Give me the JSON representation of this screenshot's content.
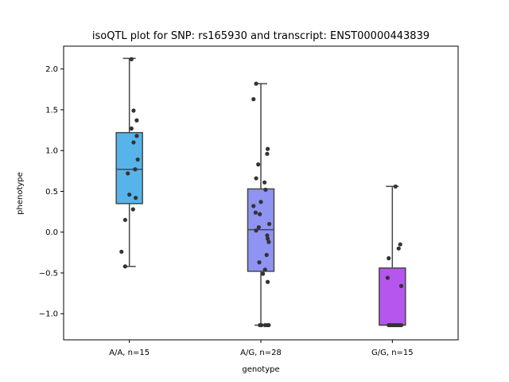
{
  "chart_data": {
    "type": "box",
    "title": "isoQTL plot for SNP: rs165930 and transcript: ENST00000443839",
    "xlabel": "genotype",
    "ylabel": "phenotype",
    "ylim": [
      -1.32,
      2.28
    ],
    "yticks": [
      -1.0,
      -0.5,
      0.0,
      0.5,
      1.0,
      1.5,
      2.0
    ],
    "ytick_labels": [
      "−1.0",
      "−0.5",
      "0.0",
      "0.5",
      "1.0",
      "1.5",
      "2.0"
    ],
    "grid": false,
    "categories": [
      "A/A, n=15",
      "A/G, n=28",
      "G/G, n=15"
    ],
    "colors": [
      "#56b4ea",
      "#8f93f1",
      "#b656ef"
    ],
    "boxes": [
      {
        "q1": 0.35,
        "median": 0.77,
        "q3": 1.22,
        "whisker_low": -0.42,
        "whisker_high": 2.13
      },
      {
        "q1": -0.48,
        "median": 0.03,
        "q3": 0.53,
        "whisker_low": -1.14,
        "whisker_high": 1.82
      },
      {
        "q1": -1.14,
        "median": -1.14,
        "q3": -0.44,
        "whisker_low": -1.14,
        "whisker_high": 0.56
      }
    ],
    "points": [
      [
        {
          "dx": 0.08,
          "y": 2.12
        },
        {
          "dx": 0.16,
          "y": 1.49
        },
        {
          "dx": 0.28,
          "y": 1.37
        },
        {
          "dx": 0.08,
          "y": 1.27
        },
        {
          "dx": 0.28,
          "y": 1.18
        },
        {
          "dx": 0.16,
          "y": 1.1
        },
        {
          "dx": 0.32,
          "y": 0.89
        },
        {
          "dx": 0.22,
          "y": 0.77
        },
        {
          "dx": -0.06,
          "y": 0.72
        },
        {
          "dx": 0.0,
          "y": 0.46
        },
        {
          "dx": 0.24,
          "y": 0.42
        },
        {
          "dx": 0.14,
          "y": 0.28
        },
        {
          "dx": -0.16,
          "y": 0.15
        },
        {
          "dx": -0.3,
          "y": -0.24
        },
        {
          "dx": -0.16,
          "y": -0.42
        }
      ],
      [
        {
          "dx": -0.18,
          "y": 1.82
        },
        {
          "dx": -0.28,
          "y": 1.63
        },
        {
          "dx": 0.26,
          "y": 1.02
        },
        {
          "dx": 0.24,
          "y": 0.96
        },
        {
          "dx": -0.1,
          "y": 0.83
        },
        {
          "dx": -0.18,
          "y": 0.66
        },
        {
          "dx": 0.14,
          "y": 0.61
        },
        {
          "dx": 0.18,
          "y": 0.52
        },
        {
          "dx": 0.0,
          "y": 0.37
        },
        {
          "dx": -0.28,
          "y": 0.32
        },
        {
          "dx": -0.2,
          "y": 0.24
        },
        {
          "dx": -0.04,
          "y": 0.22
        },
        {
          "dx": 0.32,
          "y": 0.1
        },
        {
          "dx": -0.08,
          "y": 0.06
        },
        {
          "dx": -0.18,
          "y": 0.02
        },
        {
          "dx": 0.24,
          "y": -0.04
        },
        {
          "dx": 0.26,
          "y": -0.08
        },
        {
          "dx": 0.3,
          "y": -0.12
        },
        {
          "dx": 0.22,
          "y": -0.28
        },
        {
          "dx": -0.06,
          "y": -0.37
        },
        {
          "dx": 0.16,
          "y": -0.46
        },
        {
          "dx": 0.08,
          "y": -0.51
        },
        {
          "dx": 0.26,
          "y": -0.61
        },
        {
          "dx": -0.04,
          "y": -1.14
        },
        {
          "dx": 0.02,
          "y": -1.14
        },
        {
          "dx": 0.16,
          "y": -1.14
        },
        {
          "dx": 0.24,
          "y": -1.14
        },
        {
          "dx": 0.3,
          "y": -1.14
        }
      ],
      [
        {
          "dx": 0.12,
          "y": 0.56
        },
        {
          "dx": -0.14,
          "y": -0.32
        },
        {
          "dx": 0.3,
          "y": -0.15
        },
        {
          "dx": 0.24,
          "y": -0.2
        },
        {
          "dx": -0.18,
          "y": -0.56
        },
        {
          "dx": 0.34,
          "y": -0.66
        },
        {
          "dx": -0.14,
          "y": -1.14
        },
        {
          "dx": -0.08,
          "y": -1.14
        },
        {
          "dx": -0.02,
          "y": -1.14
        },
        {
          "dx": 0.04,
          "y": -1.14
        },
        {
          "dx": 0.1,
          "y": -1.14
        },
        {
          "dx": 0.16,
          "y": -1.14
        },
        {
          "dx": 0.22,
          "y": -1.14
        },
        {
          "dx": 0.28,
          "y": -1.14
        },
        {
          "dx": 0.34,
          "y": -1.14
        }
      ]
    ]
  }
}
